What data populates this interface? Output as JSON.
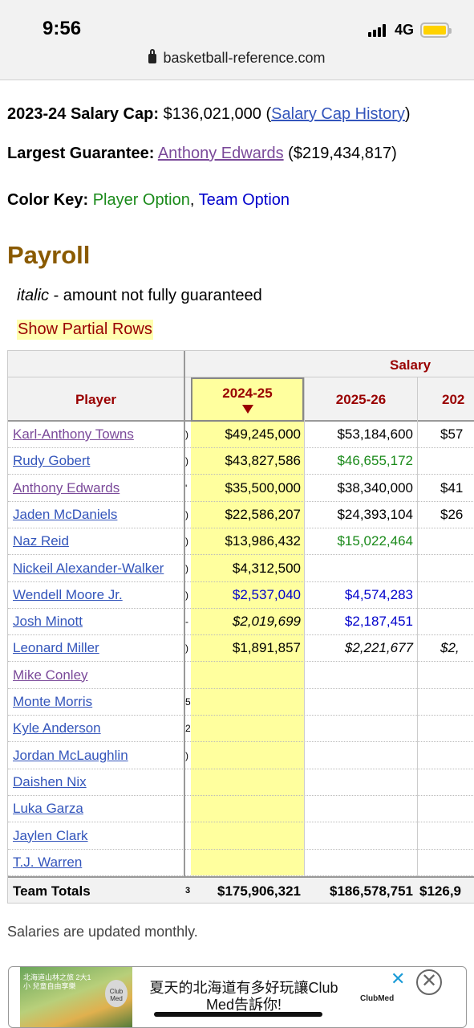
{
  "status": {
    "time": "9:56",
    "network": "4G"
  },
  "browser": {
    "url": "basketball-reference.com"
  },
  "info": {
    "salary_cap_label": "2023-24 Salary Cap:",
    "salary_cap_value": "$136,021,000",
    "salary_cap_open": "(",
    "salary_cap_link": "Salary Cap History",
    "salary_cap_close": ")",
    "largest_label": "Largest Guarantee:",
    "largest_player": "Anthony Edwards",
    "largest_value": "($219,434,817)",
    "color_key_label": "Color Key:",
    "player_option": "Player Option",
    "comma": ",",
    "team_option": "Team Option"
  },
  "payroll": {
    "heading": "Payroll",
    "note_italic": "italic",
    "note_text": " - amount not fully guaranteed",
    "partial_rows": "Show Partial Rows"
  },
  "table": {
    "group_header": "Salary",
    "columns": [
      "Player",
      "2024-25",
      "2025-26",
      "202"
    ],
    "rows": [
      {
        "player": "Karl-Anthony Towns",
        "link": "purple",
        "c1": "$49,245,000",
        "c2": "$53,184,600",
        "c3": "$57",
        "stub": ")"
      },
      {
        "player": "Rudy Gobert",
        "link": "blue",
        "c1": "$43,827,586",
        "c2": "$46,655,172",
        "c2_style": "green",
        "c3": "",
        "stub": ")"
      },
      {
        "player": "Anthony Edwards",
        "link": "purple",
        "c1": "$35,500,000",
        "c2": "$38,340,000",
        "c3": "$41",
        "stub": "'"
      },
      {
        "player": "Jaden McDaniels",
        "link": "blue",
        "c1": "$22,586,207",
        "c2": "$24,393,104",
        "c3": "$26",
        "stub": ")"
      },
      {
        "player": "Naz Reid",
        "link": "blue",
        "c1": "$13,986,432",
        "c2": "$15,022,464",
        "c2_style": "green",
        "c3": "",
        "stub": ")"
      },
      {
        "player": "Nickeil Alexander-Walker",
        "link": "blue",
        "c1": "$4,312,500",
        "c2": "",
        "c3": "",
        "stub": ")"
      },
      {
        "player": "Wendell Moore Jr.",
        "link": "blue",
        "c1": "$2,537,040",
        "c1_style": "blue",
        "c2": "$4,574,283",
        "c2_style": "blue",
        "c3": "",
        "stub": ")"
      },
      {
        "player": "Josh Minott",
        "link": "blue",
        "c1": "$2,019,699",
        "c1_style": "italic",
        "c2": "$2,187,451",
        "c2_style": "blue",
        "c3": "",
        "stub": "-"
      },
      {
        "player": "Leonard Miller",
        "link": "blue",
        "c1": "$1,891,857",
        "c2": "$2,221,677",
        "c2_style": "italic",
        "c3": "$2,",
        "c3_style": "italic",
        "stub": ")"
      },
      {
        "player": "Mike Conley",
        "link": "purple",
        "c1": "",
        "c2": "",
        "c3": "",
        "stub": ""
      },
      {
        "player": "Monte Morris",
        "link": "blue",
        "c1": "",
        "c2": "",
        "c3": "",
        "stub": "5"
      },
      {
        "player": "Kyle Anderson",
        "link": "blue",
        "c1": "",
        "c2": "",
        "c3": "",
        "stub": "2"
      },
      {
        "player": "Jordan McLaughlin",
        "link": "blue",
        "c1": "",
        "c2": "",
        "c3": "",
        "stub": ")"
      },
      {
        "player": "Daishen Nix",
        "link": "blue",
        "c1": "",
        "c2": "",
        "c3": "",
        "stub": ""
      },
      {
        "player": "Luka Garza",
        "link": "blue",
        "c1": "",
        "c2": "",
        "c3": "",
        "stub": ""
      },
      {
        "player": "Jaylen Clark",
        "link": "blue",
        "c1": "",
        "c2": "",
        "c3": "",
        "stub": ""
      },
      {
        "player": "T.J. Warren",
        "link": "blue",
        "c1": "",
        "c2": "",
        "c3": "",
        "stub": ""
      }
    ],
    "totals": {
      "label": "Team Totals",
      "stub": "3",
      "c1": "$175,906,321",
      "c2": "$186,578,751",
      "c3": "$126,9"
    }
  },
  "footer_note": "Salaries are updated monthly.",
  "ad": {
    "text": "夏天的北海道有多好玩讓Club Med告訴你!",
    "brand": "ClubMed",
    "image_caption": "北海道山林之旅 2大1小 兒童自由享樂",
    "image_logo": "Club Med",
    "close_symbol": "✕",
    "dismiss_symbol": "✕"
  }
}
